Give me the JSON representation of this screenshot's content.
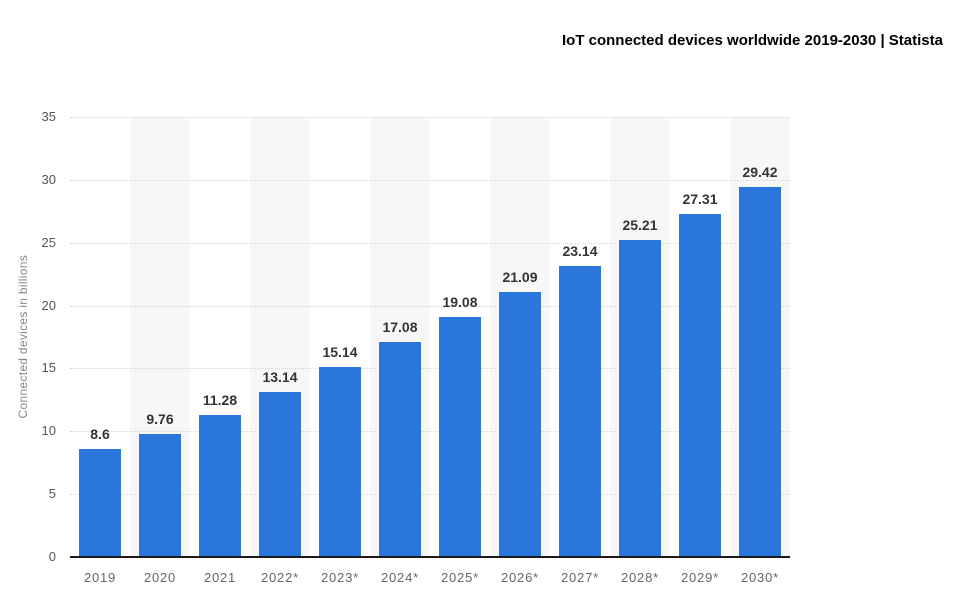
{
  "header": {
    "title": "IoT connected devices worldwide 2019-2030 | Statista"
  },
  "chart_data": {
    "type": "bar",
    "title": "IoT connected devices worldwide 2019-2030 | Statista",
    "categories": [
      "2019",
      "2020",
      "2021",
      "2022*",
      "2023*",
      "2024*",
      "2025*",
      "2026*",
      "2027*",
      "2028*",
      "2029*",
      "2030*"
    ],
    "values": [
      8.6,
      9.76,
      11.28,
      13.14,
      15.14,
      17.08,
      19.08,
      21.09,
      23.14,
      25.21,
      27.31,
      29.42
    ],
    "value_labels": [
      "8.6",
      "9.76",
      "11.28",
      "13.14",
      "15.14",
      "17.08",
      "19.08",
      "21.09",
      "23.14",
      "25.21",
      "27.31",
      "29.42"
    ],
    "xlabel": "",
    "ylabel": "Connected devices in billions",
    "ylim": [
      0,
      35
    ],
    "yticks": [
      0,
      5,
      10,
      15,
      20,
      25,
      30,
      35
    ],
    "grid": "horizontal dotted",
    "legend_position": "none",
    "plot_bands": "alternating vertical stripes on even-index columns (2020, 2022*, 2024*, 2026*, 2028*, 2030*)",
    "colors": {
      "bar": "#2b76dd",
      "stripe": "#f7f7f7",
      "gridline": "#d4d4d4",
      "axis_line": "#1a1a1a",
      "y_tick_label": "#555555",
      "x_tick_label": "#666666",
      "value_label": "#333333",
      "axis_title": "#888888",
      "background": "#ffffff"
    }
  }
}
